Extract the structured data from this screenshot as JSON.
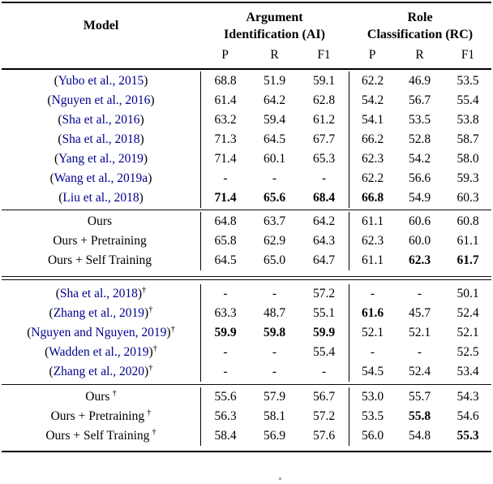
{
  "colors": {
    "citation": "#00008B",
    "text": "#000000",
    "background": "#ffffff"
  },
  "header": {
    "model": "Model",
    "groups": [
      {
        "line1": "Argument",
        "line2": "Identification (AI)"
      },
      {
        "line1": "Role",
        "line2": "Classification (RC)"
      }
    ],
    "subcols": [
      "P",
      "R",
      "F1",
      "P",
      "R",
      "F1"
    ]
  },
  "sections": [
    {
      "rows": [
        {
          "pre": "(",
          "cite": "Yubo et al., 2015",
          "post": ")",
          "dagger": "",
          "values": [
            "68.8",
            "51.9",
            "59.1",
            "62.2",
            "46.9",
            "53.5"
          ]
        },
        {
          "pre": "(",
          "cite": "Nguyen et al., 2016",
          "post": ")",
          "dagger": "",
          "values": [
            "61.4",
            "64.2",
            "62.8",
            "54.2",
            "56.7",
            "55.4"
          ]
        },
        {
          "pre": "(",
          "cite": "Sha et al., 2016",
          "post": ")",
          "dagger": "",
          "values": [
            "63.2",
            "59.4",
            "61.2",
            "54.1",
            "53.5",
            "53.8"
          ]
        },
        {
          "pre": "(",
          "cite": "Sha et al., 2018",
          "post": ")",
          "dagger": "",
          "values": [
            "71.3",
            "64.5",
            "67.7",
            "66.2",
            "52.8",
            "58.7"
          ]
        },
        {
          "pre": "(",
          "cite": "Yang et al., 2019",
          "post": ")",
          "dagger": "",
          "values": [
            "71.4",
            "60.1",
            "65.3",
            "62.3",
            "54.2",
            "58.0"
          ]
        },
        {
          "pre": "(",
          "cite": "Wang et al., 2019a",
          "post": ")",
          "dagger": "",
          "values": [
            "-",
            "-",
            "-",
            "62.2",
            "56.6",
            "59.3"
          ]
        },
        {
          "pre": "(",
          "cite": "Liu et al., 2018",
          "post": ")",
          "dagger": "",
          "values": [
            "71.4",
            "65.6",
            "68.4",
            "66.8",
            "54.9",
            "60.3"
          ]
        }
      ]
    },
    {
      "rows": [
        {
          "label": "Ours",
          "dagger": "",
          "values": [
            "64.8",
            "63.7",
            "64.2",
            "61.1",
            "60.6",
            "60.8"
          ]
        },
        {
          "label": "Ours + Pretraining",
          "dagger": "",
          "values": [
            "65.8",
            "62.9",
            "64.3",
            "62.3",
            "60.0",
            "61.1"
          ]
        },
        {
          "label": "Ours + Self Training",
          "dagger": "",
          "values": [
            "64.5",
            "65.0",
            "64.7",
            "61.1",
            "62.3",
            "61.7"
          ]
        }
      ]
    },
    {
      "rows": [
        {
          "pre": "(",
          "cite": "Sha et al., 2018",
          "post": ")",
          "dagger": "†",
          "values": [
            "-",
            "-",
            "57.2",
            "-",
            "-",
            "50.1"
          ]
        },
        {
          "pre": "(",
          "cite": "Zhang et al., 2019",
          "post": ")",
          "dagger": "†",
          "values": [
            "63.3",
            "48.7",
            "55.1",
            "61.6",
            "45.7",
            "52.4"
          ]
        },
        {
          "pre": "(",
          "cite": "Nguyen and Nguyen, 2019",
          "post": ")",
          "dagger": "†",
          "values": [
            "59.9",
            "59.8",
            "59.9",
            "52.1",
            "52.1",
            "52.1"
          ]
        },
        {
          "pre": "(",
          "cite": "Wadden et al., 2019",
          "post": ")",
          "dagger": "†",
          "values": [
            "-",
            "-",
            "55.4",
            "-",
            "-",
            "52.5"
          ]
        },
        {
          "pre": "(",
          "cite": "Zhang et al., 2020",
          "post": ")",
          "dagger": "†",
          "values": [
            "-",
            "-",
            "-",
            "54.5",
            "52.4",
            "53.4"
          ]
        }
      ]
    },
    {
      "rows": [
        {
          "label": "Ours",
          "dagger": "†",
          "values": [
            "55.6",
            "57.9",
            "56.7",
            "53.0",
            "55.7",
            "54.3"
          ]
        },
        {
          "label": "Ours + Pretraining",
          "dagger": "†",
          "values": [
            "56.3",
            "58.1",
            "57.2",
            "53.5",
            "55.8",
            "54.6"
          ]
        },
        {
          "label": "Ours + Self Training",
          "dagger": "†",
          "values": [
            "58.4",
            "56.9",
            "57.6",
            "56.0",
            "54.8",
            "55.3"
          ]
        }
      ]
    }
  ]
}
